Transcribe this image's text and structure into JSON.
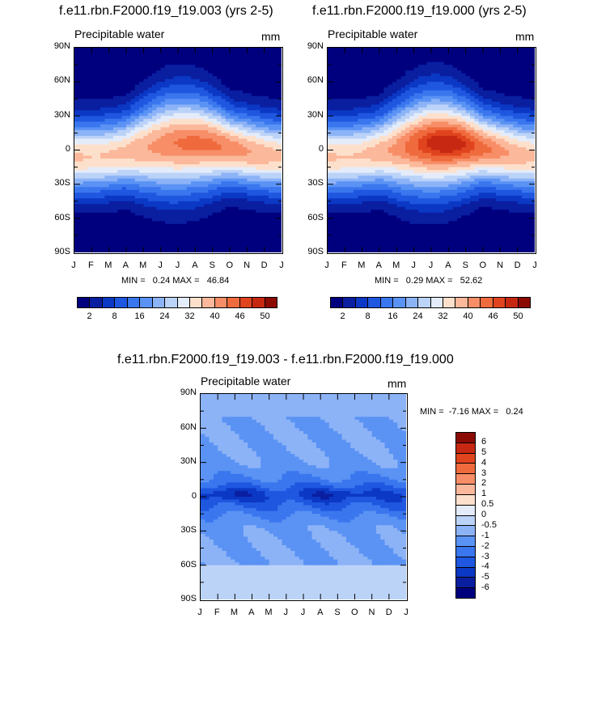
{
  "chart_data": [
    {
      "type": "heatmap",
      "title": "f.e11.rbn.F2000.f19_f19.003 (yrs 2-5)",
      "subtitle_left": "Precipitable water",
      "subtitle_right": "mm",
      "x_ticks": [
        "J",
        "F",
        "M",
        "A",
        "M",
        "J",
        "J",
        "A",
        "S",
        "O",
        "N",
        "D",
        "J"
      ],
      "y_ticks": [
        "90N",
        "60N",
        "30N",
        "0",
        "30S",
        "60S",
        "90S"
      ],
      "min_max_text": "MIN =   0.24 MAX =   46.84",
      "min": 0.24,
      "max": 46.84,
      "colorbar_labels": [
        "2",
        "8",
        "16",
        "24",
        "32",
        "40",
        "46",
        "50"
      ],
      "levels": [
        2,
        5,
        8,
        12,
        16,
        20,
        24,
        28,
        32,
        36,
        40,
        43,
        46,
        48,
        50
      ],
      "amp": 0.0
    },
    {
      "type": "heatmap",
      "title": "f.e11.rbn.F2000.f19_f19.000 (yrs 2-5)",
      "subtitle_left": "Precipitable water",
      "subtitle_right": "mm",
      "x_ticks": [
        "J",
        "F",
        "M",
        "A",
        "M",
        "J",
        "J",
        "A",
        "S",
        "O",
        "N",
        "D",
        "J"
      ],
      "y_ticks": [
        "90N",
        "60N",
        "30N",
        "0",
        "30S",
        "60S",
        "90S"
      ],
      "min_max_text": "MIN =   0.29 MAX =   52.62",
      "min": 0.29,
      "max": 52.62,
      "colorbar_labels": [
        "2",
        "8",
        "16",
        "24",
        "32",
        "40",
        "46",
        "50"
      ],
      "levels": [
        2,
        5,
        8,
        12,
        16,
        20,
        24,
        28,
        32,
        36,
        40,
        43,
        46,
        48,
        50
      ],
      "amp": 6.0
    },
    {
      "type": "heatmap",
      "title": "f.e11.rbn.F2000.f19_f19.003 - f.e11.rbn.F2000.f19_f19.000",
      "subtitle_left": "Precipitable water",
      "subtitle_right": "mm",
      "x_ticks": [
        "J",
        "F",
        "M",
        "A",
        "M",
        "J",
        "J",
        "A",
        "S",
        "O",
        "N",
        "D",
        "J"
      ],
      "y_ticks": [
        "90N",
        "60N",
        "30N",
        "0",
        "30S",
        "60S",
        "90S"
      ],
      "min_max_text": "MIN =  -7.16 MAX =   0.24",
      "min": -7.16,
      "max": 0.24,
      "colorbar_labels": [
        "6",
        "5",
        "4",
        "3",
        "2",
        "1",
        "0.5",
        "0",
        "-0.5",
        "-1",
        "-2",
        "-3",
        "-4",
        "-5",
        "-6"
      ],
      "levels": [
        -6,
        -5,
        -4,
        -3,
        -2,
        -1,
        -0.5,
        0,
        0.5,
        1,
        2,
        3,
        4,
        5,
        6
      ]
    }
  ],
  "colors": {
    "palette16": [
      "#00007f",
      "#0a1ea0",
      "#0b38c4",
      "#1f57e0",
      "#3a76ee",
      "#5b93f4",
      "#8db3f7",
      "#bcd3f8",
      "#e4ecfa",
      "#fde0cc",
      "#fbb89a",
      "#f78e68",
      "#ef6a3c",
      "#e0441f",
      "#c72812",
      "#8b0a04"
    ],
    "diff_pos": [
      "#fde0cc",
      "#fbb89a",
      "#f78e68",
      "#ef6a3c",
      "#e0441f",
      "#c72812",
      "#8b0a04"
    ],
    "diff_neg": [
      "#e4ecfa",
      "#bcd3f8",
      "#8db3f7",
      "#5b93f4",
      "#3a76ee",
      "#1f57e0",
      "#0b38c4",
      "#0a1ea0",
      "#00007f"
    ]
  }
}
